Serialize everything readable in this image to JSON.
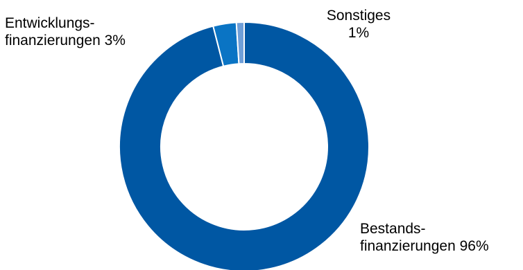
{
  "chart_data": {
    "type": "pie",
    "donut": true,
    "categories": [
      "Bestandsfinanzierungen",
      "Entwicklungsfinanzierungen",
      "Sonstiges"
    ],
    "values": [
      96,
      3,
      1
    ],
    "colors": [
      "#0057a3",
      "#0a74c4",
      "#6f9fd8"
    ],
    "title": "",
    "legend": "none",
    "labels": [
      {
        "line1": "Bestands-",
        "line2": "finanzierungen 96%"
      },
      {
        "line1": "Entwicklungs-",
        "line2": "finanzierungen 3%"
      },
      {
        "line1": "Sonstiges",
        "line2": "1%"
      }
    ]
  }
}
